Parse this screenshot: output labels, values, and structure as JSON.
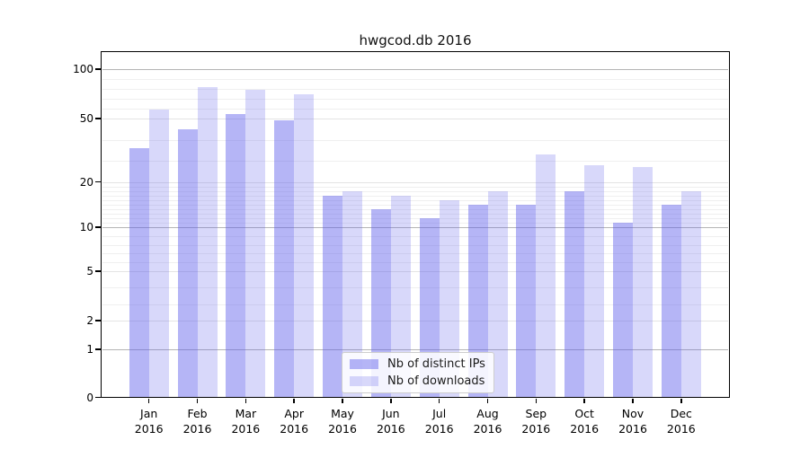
{
  "chart_data": {
    "type": "bar",
    "title": "hwgcod.db 2016",
    "categories": [
      "Jan 2016",
      "Feb 2016",
      "Mar 2016",
      "Apr 2016",
      "May 2016",
      "Jun 2016",
      "Jul 2016",
      "Aug 2016",
      "Sep 2016",
      "Oct 2016",
      "Nov 2016",
      "Dec 2016"
    ],
    "series": [
      {
        "name": "Nb of distinct IPs",
        "color": "rgba(90,90,235,0.45)",
        "values": [
          36,
          45,
          55,
          49,
          17,
          14,
          12,
          15,
          15,
          18,
          11,
          15
        ]
      },
      {
        "name": "Nb of downloads",
        "color": "rgba(90,90,235,0.24)",
        "values": [
          59,
          82,
          79,
          75,
          18,
          17,
          16,
          18,
          33,
          28,
          27,
          18
        ]
      }
    ],
    "yticks": [
      0,
      1,
      2,
      5,
      10,
      20,
      50,
      100
    ],
    "yscale": "quasi-log (piecewise linear between ticks 0,1,2,5,10,20,50,100)",
    "ylim": [
      0,
      110
    ],
    "xlabel": "",
    "ylabel": "",
    "grid": true,
    "legend_position": "lower center inside axes"
  },
  "x_axis": {
    "months": [
      "Jan",
      "Feb",
      "Mar",
      "Apr",
      "May",
      "Jun",
      "Jul",
      "Aug",
      "Sep",
      "Oct",
      "Nov",
      "Dec"
    ],
    "year": "2016"
  },
  "y_axis": {
    "tick_labels": [
      "0",
      "1",
      "2",
      "5",
      "10",
      "20",
      "50",
      "100"
    ]
  },
  "colors": {
    "bar_ips": "rgba(90,90,235,0.45)",
    "bar_downloads": "rgba(90,90,235,0.24)",
    "grid_major": "#b4b4b4",
    "grid_minor": "#efefef",
    "spine": "#000000",
    "background": "#ffffff"
  }
}
